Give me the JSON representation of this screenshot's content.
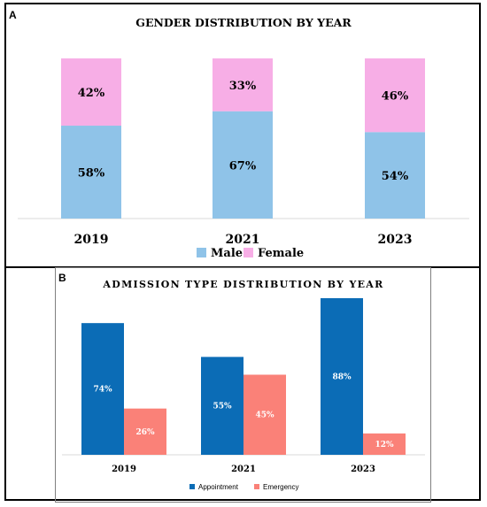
{
  "panels": [
    {
      "letter": "A",
      "chart_data": {
        "type": "bar",
        "stacked": true,
        "percent": true,
        "title": "GENDER DISTRIBUTION BY YEAR",
        "categories": [
          "2019",
          "2021",
          "2023"
        ],
        "series": [
          {
            "name": "Male",
            "values": [
              58,
              67,
              54
            ],
            "labels": [
              "58%",
              "67%",
              "54%"
            ],
            "color": "#8fc3e8"
          },
          {
            "name": "Female",
            "values": [
              42,
              33,
              46
            ],
            "labels": [
              "42%",
              "33%",
              "46%"
            ],
            "color": "#f7aee6"
          }
        ],
        "ylim": [
          0,
          100
        ],
        "grid": false,
        "legend": "bottom"
      }
    },
    {
      "letter": "B",
      "chart_data": {
        "type": "bar",
        "stacked": false,
        "percent": true,
        "title": "ADMISSION TYPE DISTRIBUTION BY YEAR",
        "categories": [
          "2019",
          "2021",
          "2023"
        ],
        "series": [
          {
            "name": "Appointment",
            "values": [
              74,
              55,
              88
            ],
            "labels": [
              "74%",
              "55%",
              "88%"
            ],
            "color": "#0b6cb6"
          },
          {
            "name": "Emergency",
            "values": [
              26,
              45,
              12
            ],
            "labels": [
              "26%",
              "45%",
              "12%"
            ],
            "color": "#fa8178"
          }
        ],
        "ylim": [
          0,
          100
        ],
        "grid": false,
        "legend": "bottom"
      }
    }
  ]
}
